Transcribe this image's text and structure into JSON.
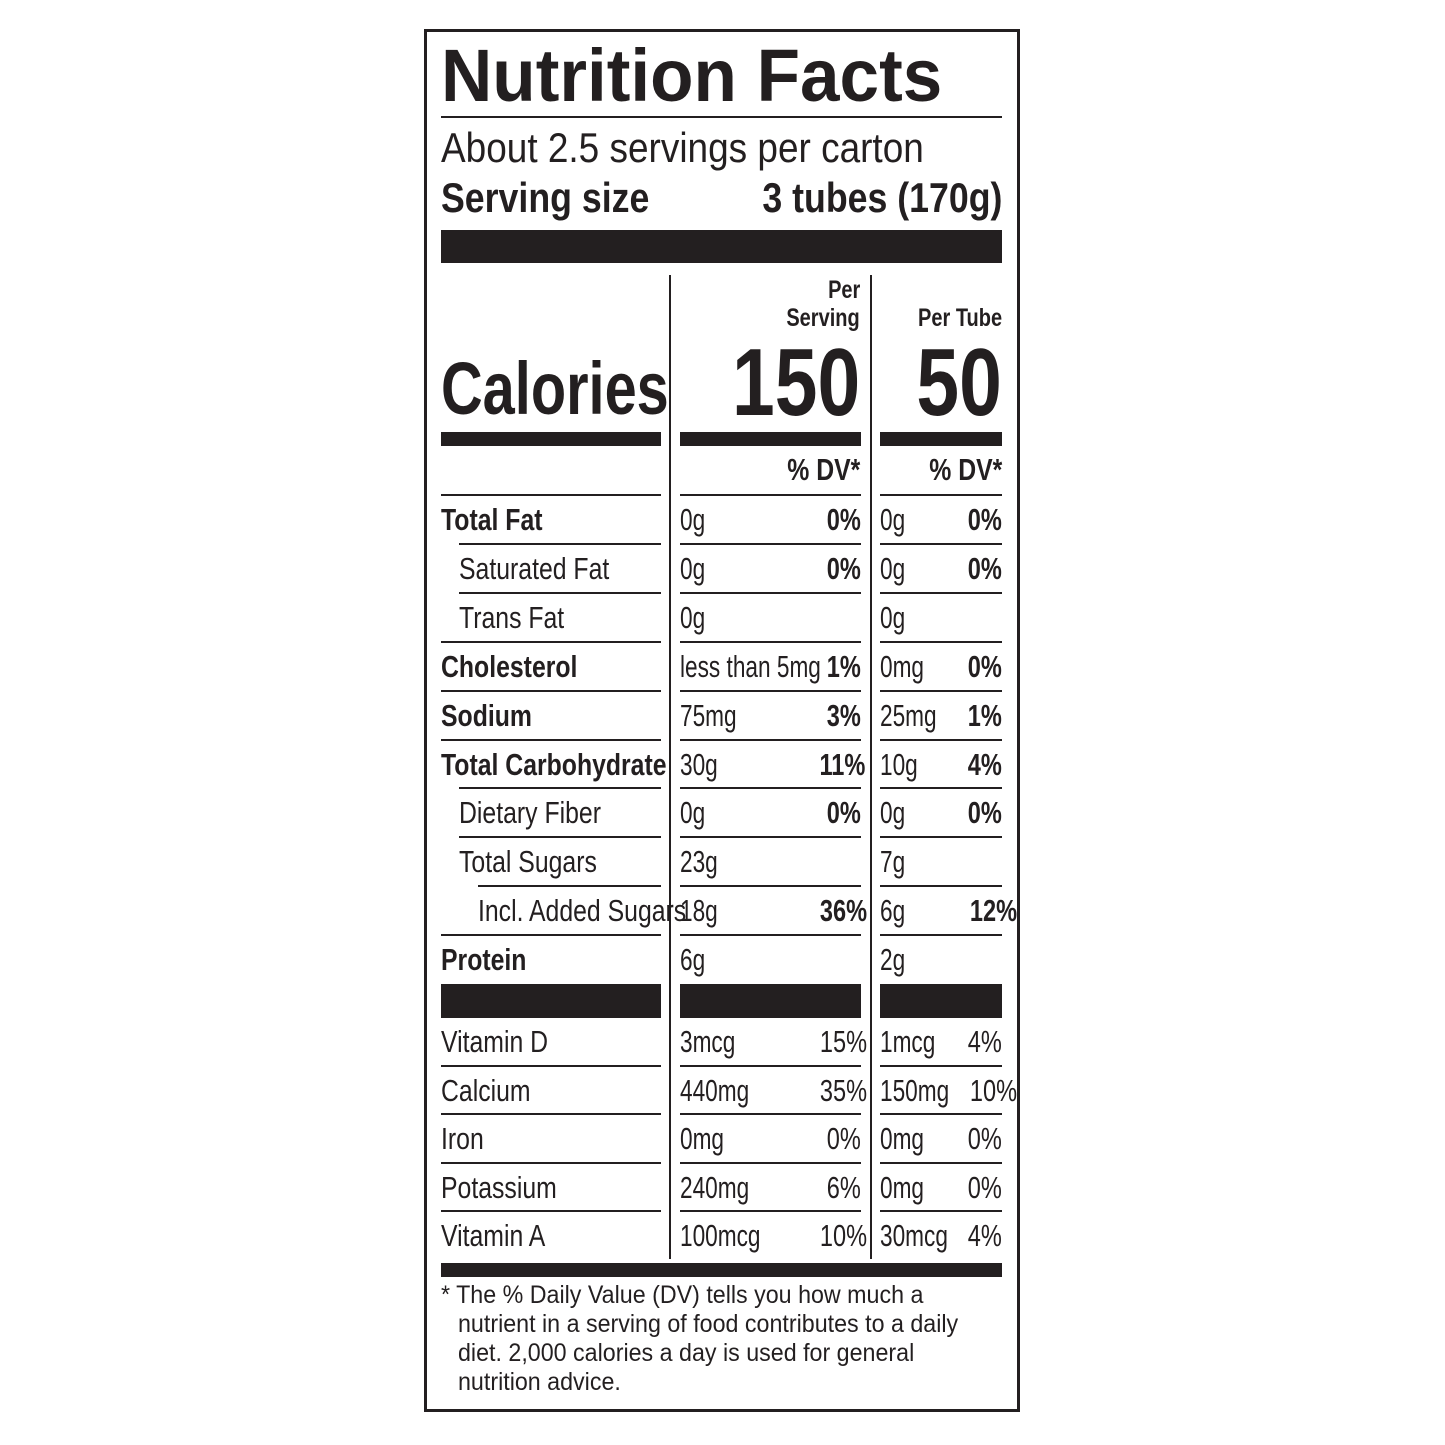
{
  "title": "Nutrition Facts",
  "servings_per_container": "About 2.5 servings per carton",
  "serving_size_label": "Serving size",
  "serving_size_value": "3 tubes (170g)",
  "calories_label": "Calories",
  "columns": [
    {
      "header_line1": "Per",
      "header_line2": "Serving",
      "calories": "150",
      "dv_header": "% DV*"
    },
    {
      "header_line1": "",
      "header_line2": "Per Tube",
      "calories": "50",
      "dv_header": "% DV*"
    }
  ],
  "nutrients": [
    {
      "label": "Total Fat",
      "indent": 0,
      "bold": true,
      "serving_amount": "0g",
      "serving_dv": "0%",
      "tube_amount": "0g",
      "tube_dv": "0%"
    },
    {
      "label": "Saturated Fat",
      "indent": 1,
      "bold": false,
      "serving_amount": "0g",
      "serving_dv": "0%",
      "tube_amount": "0g",
      "tube_dv": "0%"
    },
    {
      "label": "Trans Fat",
      "indent": 1,
      "bold": false,
      "serving_amount": "0g",
      "serving_dv": "",
      "tube_amount": "0g",
      "tube_dv": ""
    },
    {
      "label": "Cholesterol",
      "indent": 0,
      "bold": true,
      "serving_amount": "less than 5mg",
      "serving_dv": "1%",
      "tube_amount": "0mg",
      "tube_dv": "0%"
    },
    {
      "label": "Sodium",
      "indent": 0,
      "bold": true,
      "serving_amount": "75mg",
      "serving_dv": "3%",
      "tube_amount": "25mg",
      "tube_dv": "1%"
    },
    {
      "label": "Total Carbohydrate",
      "indent": 0,
      "bold": true,
      "serving_amount": "30g",
      "serving_dv": "11%",
      "tube_amount": "10g",
      "tube_dv": "4%"
    },
    {
      "label": "Dietary Fiber",
      "indent": 1,
      "bold": false,
      "serving_amount": "0g",
      "serving_dv": "0%",
      "tube_amount": "0g",
      "tube_dv": "0%"
    },
    {
      "label": "Total Sugars",
      "indent": 1,
      "bold": false,
      "serving_amount": "23g",
      "serving_dv": "",
      "tube_amount": "7g",
      "tube_dv": ""
    },
    {
      "label": "Incl. Added Sugars",
      "indent": 2,
      "bold": false,
      "serving_amount": "18g",
      "serving_dv": "36%",
      "tube_amount": "6g",
      "tube_dv": "12%"
    },
    {
      "label": "Protein",
      "indent": 0,
      "bold": true,
      "serving_amount": "6g",
      "serving_dv": "",
      "tube_amount": "2g",
      "tube_dv": ""
    }
  ],
  "vitamins": [
    {
      "label": "Vitamin D",
      "serving_amount": "3mcg",
      "serving_dv": "15%",
      "tube_amount": "1mcg",
      "tube_dv": "4%"
    },
    {
      "label": "Calcium",
      "serving_amount": "440mg",
      "serving_dv": "35%",
      "tube_amount": "150mg",
      "tube_dv": "10%"
    },
    {
      "label": "Iron",
      "serving_amount": "0mg",
      "serving_dv": "0%",
      "tube_amount": "0mg",
      "tube_dv": "0%"
    },
    {
      "label": "Potassium",
      "serving_amount": "240mg",
      "serving_dv": "6%",
      "tube_amount": "0mg",
      "tube_dv": "0%"
    },
    {
      "label": "Vitamin A",
      "serving_amount": "100mcg",
      "serving_dv": "10%",
      "tube_amount": "30mcg",
      "tube_dv": "4%"
    }
  ],
  "footnote": {
    "line1": "* The % Daily Value (DV) tells you how much a",
    "line2": "nutrient in a serving of food contributes to a daily",
    "line3": "diet. 2,000 calories a day is used for general",
    "line4": "nutrition advice."
  }
}
